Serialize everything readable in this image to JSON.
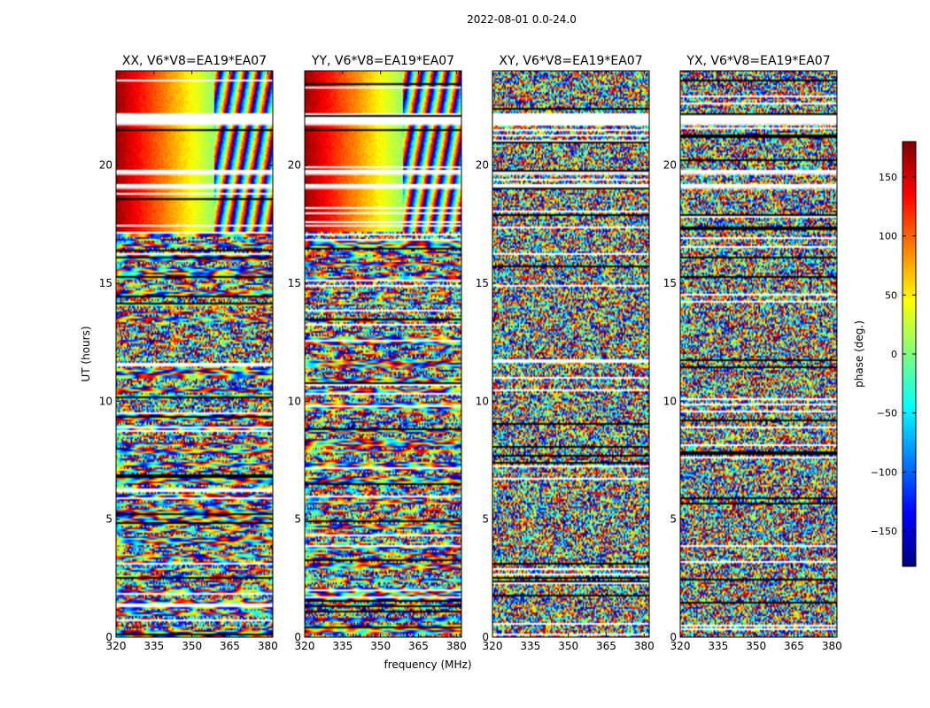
{
  "figure": {
    "suptitle": "2022-08-01 0.0-24.0",
    "xlabel": "frequency (MHz)",
    "ylabel": "UT (hours)"
  },
  "colorbar": {
    "label": "phase (deg.)",
    "range": [
      -180,
      180
    ],
    "ticks": [
      150,
      100,
      50,
      0,
      -50,
      -100,
      -150
    ],
    "tick_labels": [
      "150",
      "100",
      "50",
      "0",
      "−50",
      "−100",
      "−150"
    ],
    "colormap": "jet",
    "colors": [
      "#00007f",
      "#0000ff",
      "#007fff",
      "#00ffff",
      "#7fff7f",
      "#ffff00",
      "#ff7f00",
      "#ff0000",
      "#7f0000"
    ]
  },
  "chart_data": [
    {
      "type": "heatmap",
      "title": "XX, V6*V8=EA19*EA07",
      "x_range": [
        320,
        382
      ],
      "x_ticks": [
        320,
        335,
        350,
        365,
        380
      ],
      "y_range": [
        0,
        24
      ],
      "y_ticks": [
        0,
        5,
        10,
        15,
        20
      ],
      "value": "phase (deg.)",
      "flagged_hours": [
        [
          21.7,
          22.2
        ],
        [
          19.6,
          19.8
        ],
        [
          19.0,
          19.2
        ]
      ]
    },
    {
      "type": "heatmap",
      "title": "YY, V6*V8=EA19*EA07",
      "x_range": [
        320,
        382
      ],
      "x_ticks": [
        320,
        335,
        350,
        365,
        380
      ],
      "y_range": [
        0,
        24
      ],
      "y_ticks": [
        0,
        5,
        10,
        15,
        20
      ],
      "value": "phase (deg.)",
      "flagged_hours": [
        [
          21.7,
          22.2
        ],
        [
          19.6,
          19.8
        ],
        [
          19.0,
          19.2
        ]
      ]
    },
    {
      "type": "heatmap",
      "title": "XY, V6*V8=EA19*EA07",
      "x_range": [
        320,
        382
      ],
      "x_ticks": [
        320,
        335,
        350,
        365,
        380
      ],
      "y_range": [
        0,
        24
      ],
      "y_ticks": [
        0,
        5,
        10,
        15,
        20
      ],
      "value": "phase (deg.)",
      "flagged_hours": [
        [
          21.7,
          22.2
        ],
        [
          19.6,
          19.8
        ],
        [
          19.0,
          19.2
        ]
      ]
    },
    {
      "type": "heatmap",
      "title": "YX, V6*V8=EA19*EA07",
      "x_range": [
        320,
        382
      ],
      "x_ticks": [
        320,
        335,
        350,
        365,
        380
      ],
      "y_range": [
        0,
        24
      ],
      "y_ticks": [
        0,
        5,
        10,
        15,
        20
      ],
      "value": "phase (deg.)",
      "flagged_hours": [
        [
          21.7,
          22.2
        ],
        [
          19.6,
          19.8
        ],
        [
          19.0,
          19.2
        ]
      ]
    }
  ]
}
